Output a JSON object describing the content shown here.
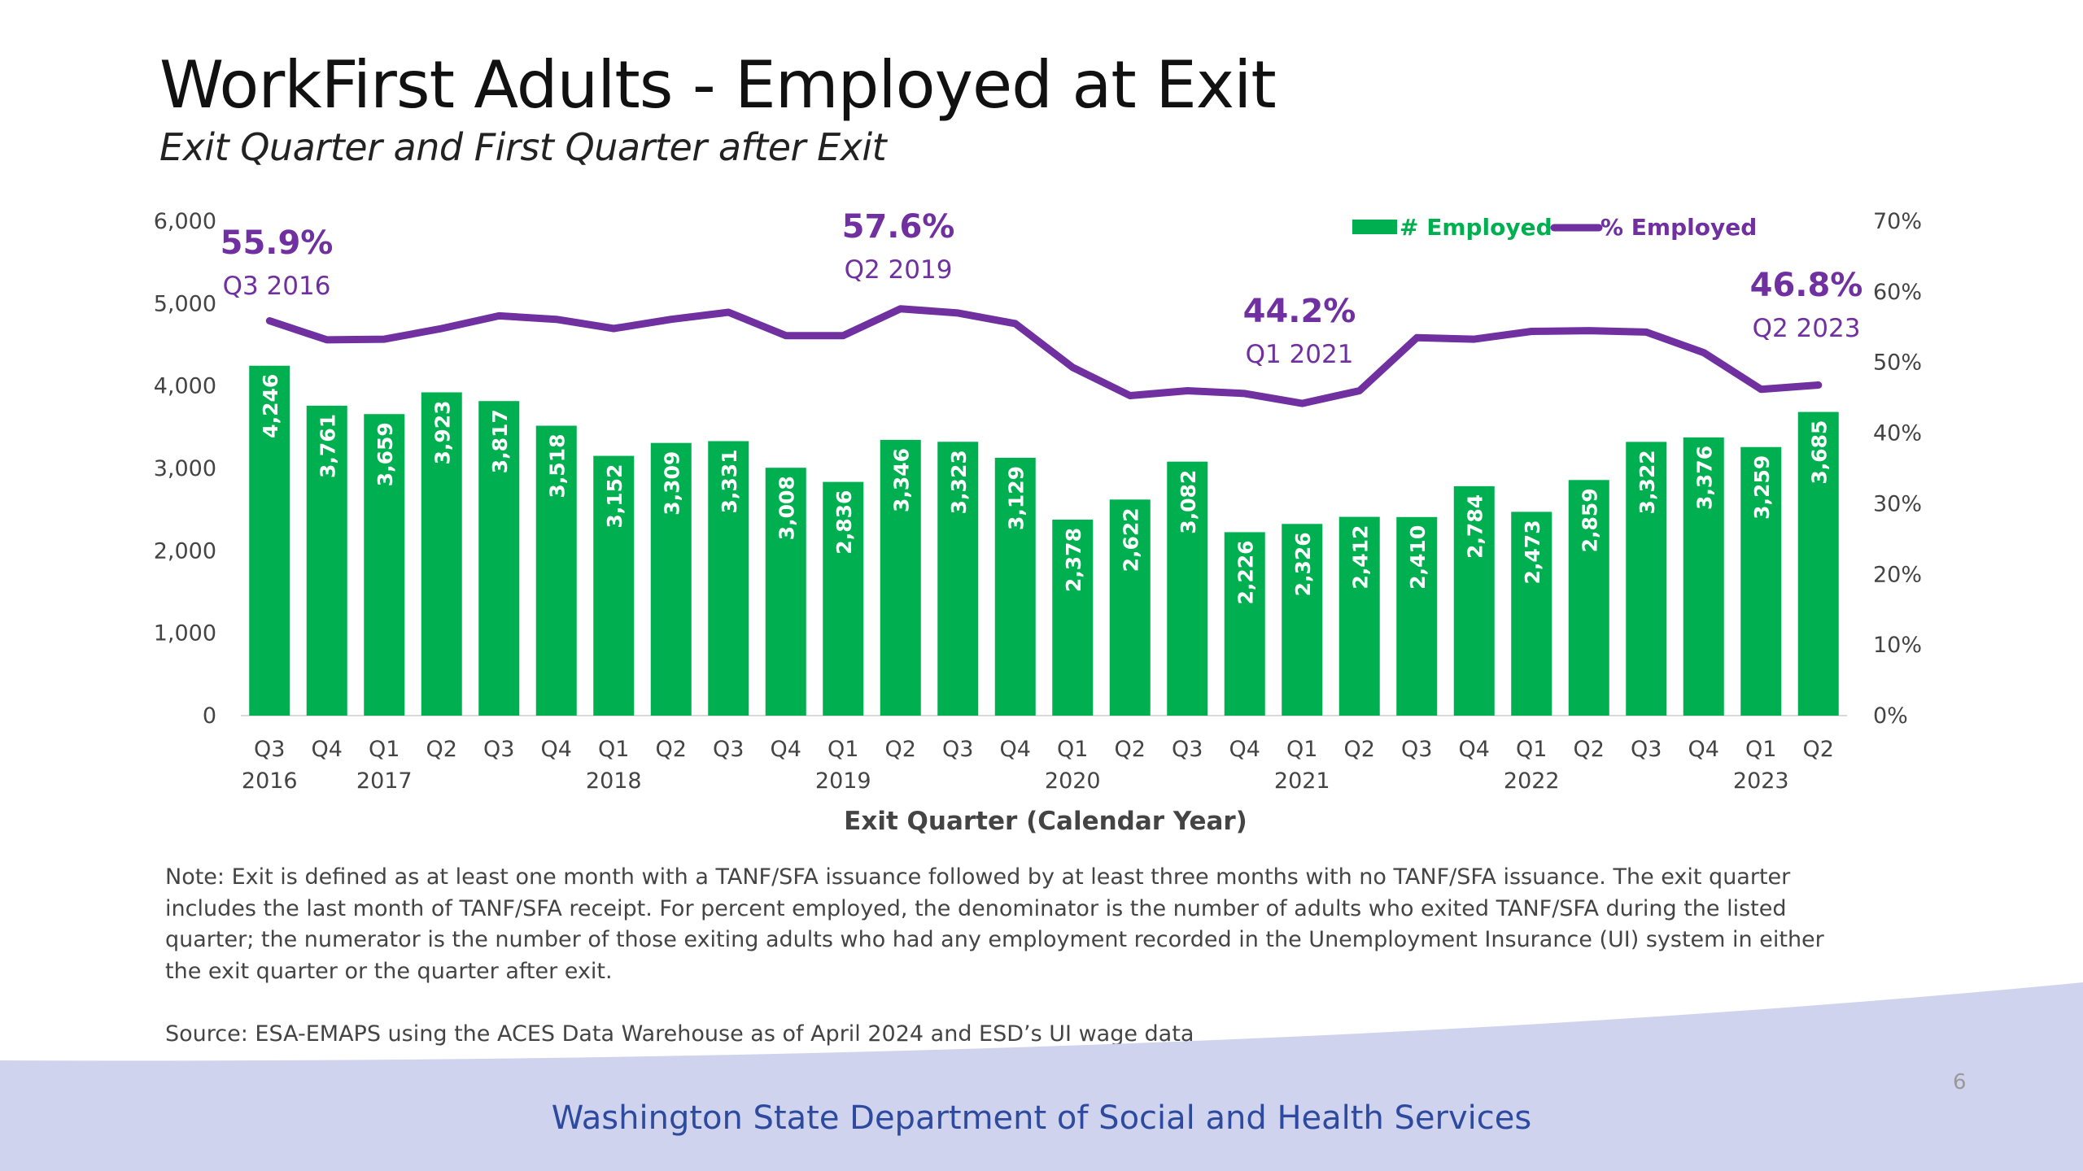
{
  "slide": {
    "title": "WorkFirst Adults - Employed at Exit",
    "subtitle": "Exit Quarter and First Quarter after Exit",
    "note": "Note: Exit is defined as at least one month with a TANF/SFA issuance followed by at least three months with no TANF/SFA issuance. The exit quarter includes the last month of TANF/SFA receipt. For percent employed, the denominator is the number of adults who exited TANF/SFA during the listed quarter; the numerator is the number of those exiting adults who had any employment recorded in the Unemployment Insurance (UI) system in either the exit quarter or the quarter after exit.",
    "source": "Source: ESA-EMAPS using the ACES Data Warehouse as of April 2024 and ESD’s UI wage data",
    "footer_org": "Washington State Department of Social and Health Services",
    "page_number": "6",
    "colors": {
      "bars": "#00b050",
      "line": "#7030a0",
      "footer_band": "#cfd3ee",
      "footer_text": "#2e4a9e"
    }
  },
  "chart_data": {
    "type": "bar",
    "title": "",
    "xlabel": "Exit Quarter (Calendar Year)",
    "ylabel": "",
    "categories": [
      "Q3",
      "Q4",
      "Q1",
      "Q2",
      "Q3",
      "Q4",
      "Q1",
      "Q2",
      "Q3",
      "Q4",
      "Q1",
      "Q2",
      "Q3",
      "Q4",
      "Q1",
      "Q2",
      "Q3",
      "Q4",
      "Q1",
      "Q2",
      "Q3",
      "Q4",
      "Q1",
      "Q2",
      "Q3",
      "Q4",
      "Q1",
      "Q2"
    ],
    "years": [
      {
        "label": "2016",
        "index": 0
      },
      {
        "label": "2017",
        "index": 2
      },
      {
        "label": "2018",
        "index": 6
      },
      {
        "label": "2019",
        "index": 10
      },
      {
        "label": "2020",
        "index": 14
      },
      {
        "label": "2021",
        "index": 18
      },
      {
        "label": "2022",
        "index": 22
      },
      {
        "label": "2023",
        "index": 26
      }
    ],
    "series": [
      {
        "name": "# Employed",
        "type": "bar",
        "axis": "left",
        "values": [
          4246,
          3761,
          3659,
          3923,
          3817,
          3518,
          3152,
          3309,
          3331,
          3008,
          2836,
          3346,
          3323,
          3129,
          2378,
          2622,
          3082,
          2226,
          2326,
          2412,
          2410,
          2784,
          2473,
          2859,
          3322,
          3376,
          3259,
          3685
        ],
        "labels": [
          "4,246",
          "3,761",
          "3,659",
          "3,923",
          "3,817",
          "3,518",
          "3,152",
          "3,309",
          "3,331",
          "3,008",
          "2,836",
          "3,346",
          "3,323",
          "3,129",
          "2,378",
          "2,622",
          "3,082",
          "2,226",
          "2,326",
          "2,412",
          "2,410",
          "2,784",
          "2,473",
          "2,859",
          "3,322",
          "3,376",
          "3,259",
          "3,685"
        ]
      },
      {
        "name": "% Employed",
        "type": "line",
        "axis": "right",
        "values": [
          55.9,
          53.2,
          53.3,
          54.8,
          56.6,
          56.1,
          54.8,
          56.1,
          57.1,
          53.8,
          53.8,
          57.6,
          57.0,
          55.5,
          49.3,
          45.3,
          46.0,
          45.6,
          44.2,
          46.0,
          53.5,
          53.3,
          54.4,
          54.5,
          54.3,
          51.4,
          46.2,
          46.8
        ]
      }
    ],
    "y_left": {
      "min": 0,
      "max": 6000,
      "ticks": [
        0,
        1000,
        2000,
        3000,
        4000,
        5000,
        6000
      ],
      "tick_labels": [
        "0",
        "1,000",
        "2,000",
        "3,000",
        "4,000",
        "5,000",
        "6,000"
      ]
    },
    "y_right": {
      "min": 0,
      "max": 70,
      "ticks": [
        0,
        10,
        20,
        30,
        40,
        50,
        60,
        70
      ],
      "tick_labels": [
        "0%",
        "10%",
        "20%",
        "30%",
        "40%",
        "50%",
        "60%",
        "70%"
      ]
    },
    "annotations": [
      {
        "index": 0,
        "value": "55.9%",
        "quarter": "Q3 2016"
      },
      {
        "index": 11,
        "value": "57.6%",
        "quarter": "Q2 2019"
      },
      {
        "index": 18,
        "value": "44.2%",
        "quarter": "Q1 2021"
      },
      {
        "index": 27,
        "value": "46.8%",
        "quarter": "Q2 2023"
      }
    ],
    "legend_position": "top-right",
    "grid": false
  }
}
